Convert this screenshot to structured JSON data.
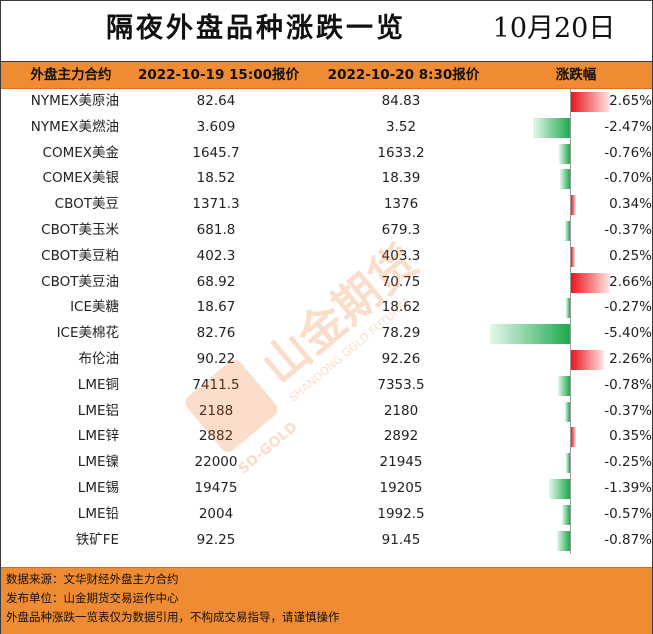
{
  "title": "隔夜外盘品种涨跌一览",
  "date": "10月20日",
  "header": {
    "name": "外盘主力合约",
    "col1": "2022-10-19 15:00报价",
    "col2": "2022-10-20 8:30报价",
    "pct": "涨跌幅"
  },
  "rows": [
    {
      "name": "NYMEX美原油",
      "v1": "82.64",
      "v2": "84.83",
      "pct": "2.65%",
      "change": 2.65
    },
    {
      "name": "NYMEX美燃油",
      "v1": "3.609",
      "v2": "3.52",
      "pct": "-2.47%",
      "change": -2.47
    },
    {
      "name": "COMEX美金",
      "v1": "1645.7",
      "v2": "1633.2",
      "pct": "-0.76%",
      "change": -0.76
    },
    {
      "name": "COMEX美银",
      "v1": "18.52",
      "v2": "18.39",
      "pct": "-0.70%",
      "change": -0.7
    },
    {
      "name": "CBOT美豆",
      "v1": "1371.3",
      "v2": "1376",
      "pct": "0.34%",
      "change": 0.34
    },
    {
      "name": "CBOT美玉米",
      "v1": "681.8",
      "v2": "679.3",
      "pct": "-0.37%",
      "change": -0.37
    },
    {
      "name": "CBOT美豆粕",
      "v1": "402.3",
      "v2": "403.3",
      "pct": "0.25%",
      "change": 0.25
    },
    {
      "name": "CBOT美豆油",
      "v1": "68.92",
      "v2": "70.75",
      "pct": "2.66%",
      "change": 2.66
    },
    {
      "name": "ICE美糖",
      "v1": "18.67",
      "v2": "18.62",
      "pct": "-0.27%",
      "change": -0.27
    },
    {
      "name": "ICE美棉花",
      "v1": "82.76",
      "v2": "78.29",
      "pct": "-5.40%",
      "change": -5.4
    },
    {
      "name": "布伦油",
      "v1": "90.22",
      "v2": "92.26",
      "pct": "2.26%",
      "change": 2.26
    },
    {
      "name": "LME铜",
      "v1": "7411.5",
      "v2": "7353.5",
      "pct": "-0.78%",
      "change": -0.78
    },
    {
      "name": "LME铝",
      "v1": "2188",
      "v2": "2180",
      "pct": "-0.37%",
      "change": -0.37
    },
    {
      "name": "LME锌",
      "v1": "2882",
      "v2": "2892",
      "pct": "0.35%",
      "change": 0.35
    },
    {
      "name": "LME镍",
      "v1": "22000",
      "v2": "21945",
      "pct": "-0.25%",
      "change": -0.25
    },
    {
      "name": "LME锡",
      "v1": "19475",
      "v2": "19205",
      "pct": "-1.39%",
      "change": -1.39
    },
    {
      "name": "LME铅",
      "v1": "2004",
      "v2": "1992.5",
      "pct": "-0.57%",
      "change": -0.57
    },
    {
      "name": "铁矿FE",
      "v1": "92.25",
      "v2": "91.45",
      "pct": "-0.87%",
      "change": -0.87
    }
  ],
  "footer": {
    "source": "数据来源：文华财经外盘主力合约",
    "publisher": "发布单位：山金期货交易运作中心",
    "disclaimer": "外盘品种涨跌一览表仅为数据引用，不构成交易指导，请谨慎操作"
  },
  "watermark": {
    "brand": "山金期货",
    "en": "SHANDONG GOLD FUTURES",
    "logo_text": "SD-GOLD"
  },
  "colors": {
    "header_bg": "#ef8b33",
    "up": "#e8161b",
    "down": "#1daa4e"
  }
}
